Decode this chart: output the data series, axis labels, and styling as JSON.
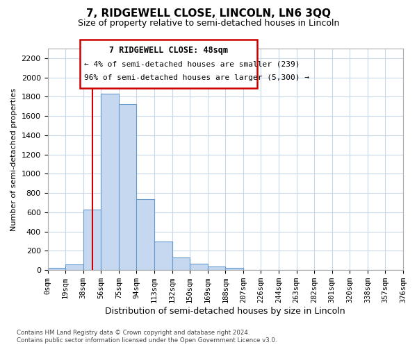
{
  "title": "7, RIDGEWELL CLOSE, LINCOLN, LN6 3QQ",
  "subtitle": "Size of property relative to semi-detached houses in Lincoln",
  "xlabel": "Distribution of semi-detached houses by size in Lincoln",
  "ylabel": "Number of semi-detached properties",
  "bin_labels": [
    "0sqm",
    "19sqm",
    "38sqm",
    "56sqm",
    "75sqm",
    "94sqm",
    "113sqm",
    "132sqm",
    "150sqm",
    "169sqm",
    "188sqm",
    "207sqm",
    "226sqm",
    "244sqm",
    "263sqm",
    "282sqm",
    "301sqm",
    "320sqm",
    "338sqm",
    "357sqm",
    "376sqm"
  ],
  "bar_heights": [
    25,
    60,
    630,
    1830,
    1720,
    740,
    300,
    130,
    65,
    40,
    20,
    5,
    0,
    0,
    0,
    0,
    0,
    0,
    0,
    0
  ],
  "bar_color": "#c5d8f0",
  "bar_edge_color": "#6699cc",
  "property_line_bin": 2.526,
  "annotation_title": "7 RIDGEWELL CLOSE: 48sqm",
  "annotation_line1": "← 4% of semi-detached houses are smaller (239)",
  "annotation_line2": "96% of semi-detached houses are larger (5,300) →",
  "vline_color": "#cc0000",
  "annotation_box_color": "#ffffff",
  "annotation_box_edge": "#cc0000",
  "ylim": [
    0,
    2300
  ],
  "yticks": [
    0,
    200,
    400,
    600,
    800,
    1000,
    1200,
    1400,
    1600,
    1800,
    2000,
    2200
  ],
  "footer1": "Contains HM Land Registry data © Crown copyright and database right 2024.",
  "footer2": "Contains public sector information licensed under the Open Government Licence v3.0.",
  "bg_color": "#ffffff",
  "grid_color": "#c8d8e8"
}
